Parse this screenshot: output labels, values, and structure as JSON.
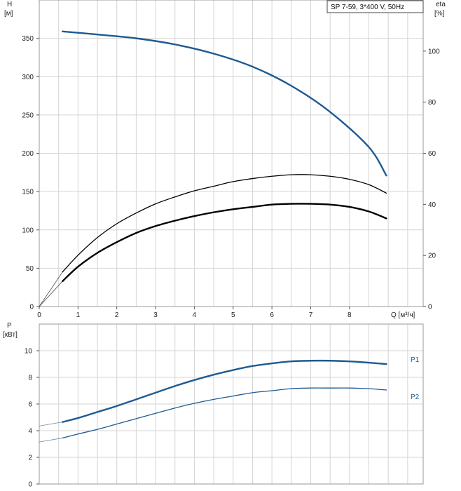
{
  "legend": {
    "text": "SP 7-59, 3*400 V, 50Hz"
  },
  "colors": {
    "head": "#1f5a93",
    "eta": "#000000",
    "power": "#1f5a93",
    "grid": "#d4d4d4"
  },
  "chart_data": [
    {
      "type": "line",
      "title": "",
      "xlabel": "Q [м³/ч]",
      "x_ticks": [
        0,
        1,
        2,
        3,
        4,
        5,
        6,
        7,
        8
      ],
      "xlim": [
        0,
        9.9
      ],
      "left_axis": {
        "label_line1": "H",
        "label_line2": "[м]",
        "ylim": [
          0,
          400
        ],
        "ticks": [
          0,
          50,
          100,
          150,
          200,
          250,
          300,
          350
        ]
      },
      "right_axis": {
        "label_line1": "eta",
        "label_line2": "[%]",
        "ylim": [
          0,
          120
        ],
        "ticks": [
          0,
          20,
          40,
          60,
          80,
          100
        ]
      },
      "series": [
        {
          "axis": "left",
          "color": "#1f5a93",
          "width": 2.4,
          "x": [
            0.6,
            1.5,
            2.5,
            3.5,
            4.5,
            5.5,
            6.5,
            7.5,
            8.5,
            8.95
          ],
          "y": [
            359,
            355,
            350,
            342,
            330,
            313,
            288,
            254,
            208,
            171
          ]
        },
        {
          "axis": "left",
          "color": "#000000",
          "width": 1.3,
          "dashed": true,
          "x": [
            0,
            0.6
          ],
          "y": [
            0,
            45
          ]
        },
        {
          "axis": "left",
          "color": "#000000",
          "width": 1.3,
          "x": [
            0.6,
            1,
            1.5,
            2,
            2.5,
            3,
            3.5,
            4,
            4.5,
            5,
            5.5,
            6,
            6.5,
            7,
            7.5,
            8,
            8.5,
            8.95
          ],
          "y": [
            45,
            67,
            90,
            108,
            122,
            134,
            143,
            151,
            157,
            163,
            167,
            170,
            172,
            172,
            170,
            166,
            159,
            148
          ]
        },
        {
          "axis": "left",
          "color": "#000000",
          "width": 2.4,
          "dashed": true,
          "x": [
            0,
            0.6
          ],
          "y": [
            0,
            33
          ]
        },
        {
          "axis": "left",
          "color": "#000000",
          "width": 2.4,
          "x": [
            0.6,
            1,
            1.5,
            2,
            2.5,
            3,
            3.5,
            4,
            4.5,
            5,
            5.5,
            6,
            6.5,
            7,
            7.5,
            8,
            8.5,
            8.95
          ],
          "y": [
            33,
            52,
            70,
            84,
            96,
            105,
            112,
            118,
            123,
            127,
            130,
            133,
            134,
            134,
            133,
            130,
            124,
            115
          ]
        }
      ]
    },
    {
      "type": "line",
      "title": "",
      "xlabel": "",
      "left_axis": {
        "label_line1": "P",
        "label_line2": "[кВт]",
        "ylim": [
          0,
          12
        ],
        "ticks": [
          0,
          2,
          4,
          6,
          8,
          10
        ]
      },
      "xlim": [
        0,
        9.9
      ],
      "series": [
        {
          "name": "P1",
          "color": "#1f5a93",
          "width": 2.4,
          "x": [
            0,
            0.6,
            1,
            1.5,
            2,
            2.5,
            3,
            3.5,
            4,
            4.5,
            5,
            5.5,
            6,
            6.5,
            7,
            7.5,
            8,
            8.5,
            8.95
          ],
          "y": [
            4.35,
            4.65,
            4.95,
            5.4,
            5.85,
            6.35,
            6.85,
            7.35,
            7.8,
            8.2,
            8.55,
            8.85,
            9.05,
            9.2,
            9.25,
            9.25,
            9.2,
            9.1,
            9.0
          ]
        },
        {
          "name": "P2",
          "color": "#1f5a93",
          "width": 1.3,
          "x": [
            0,
            0.6,
            1,
            1.5,
            2,
            2.5,
            3,
            3.5,
            4,
            4.5,
            5,
            5.5,
            6,
            6.5,
            7,
            7.5,
            8,
            8.5,
            8.95
          ],
          "y": [
            3.15,
            3.45,
            3.75,
            4.1,
            4.5,
            4.9,
            5.3,
            5.7,
            6.05,
            6.35,
            6.6,
            6.85,
            7.0,
            7.15,
            7.2,
            7.2,
            7.2,
            7.15,
            7.05
          ]
        }
      ]
    }
  ]
}
